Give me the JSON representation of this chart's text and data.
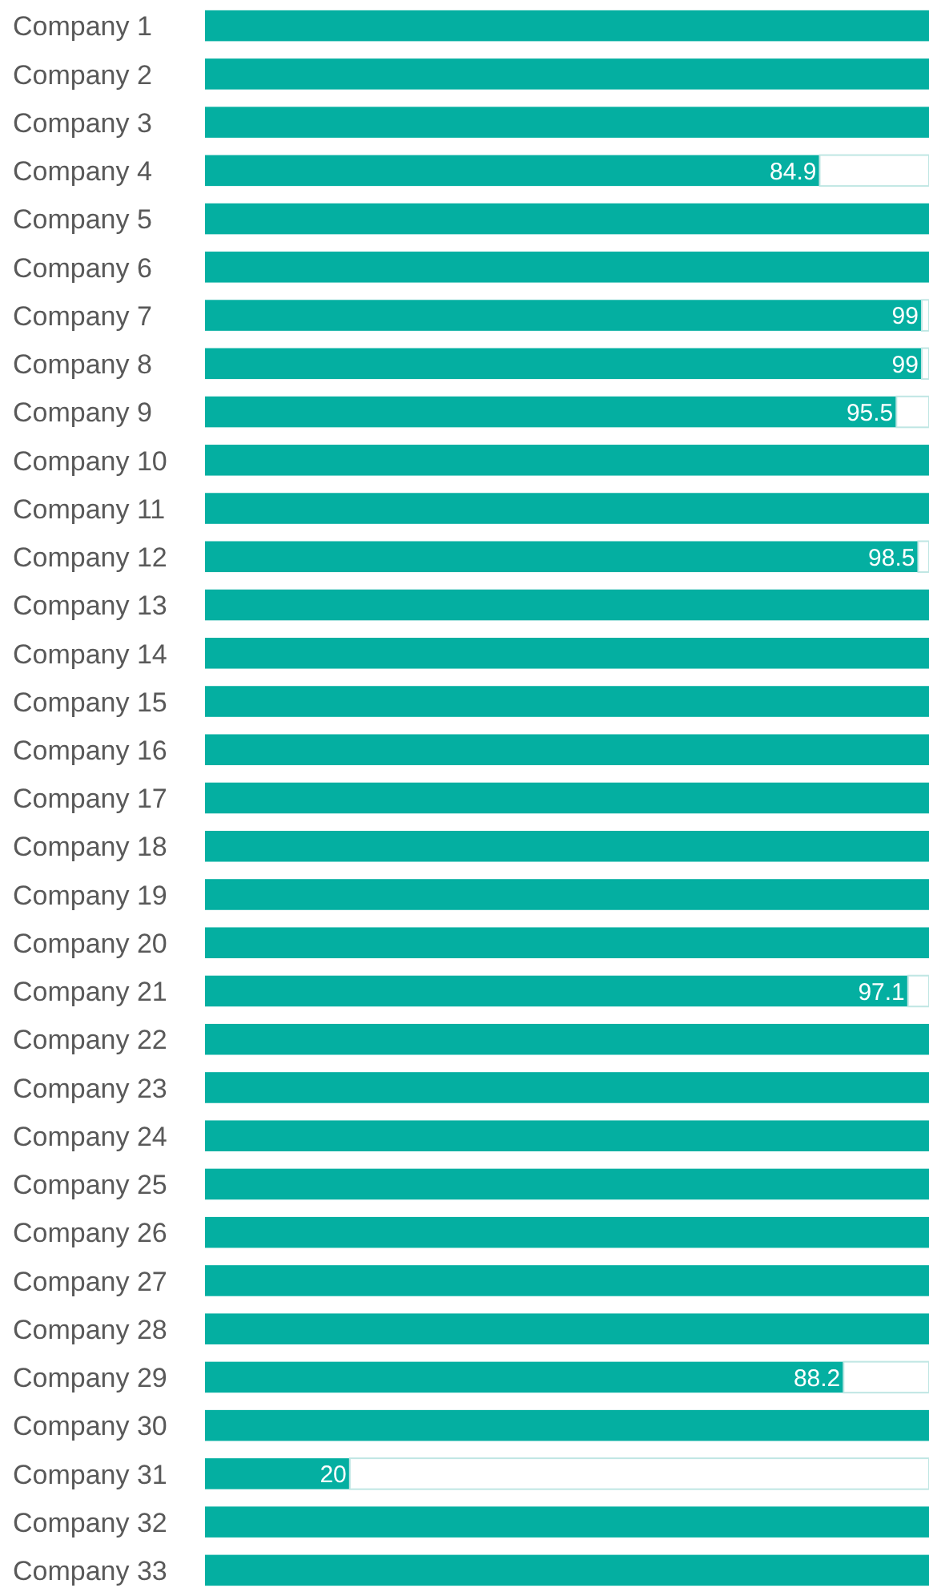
{
  "chart_data": {
    "type": "bar",
    "orientation": "horizontal",
    "stacked": true,
    "categories": [
      "Company 1",
      "Company 2",
      "Company 3",
      "Company 4",
      "Company 5",
      "Company 6",
      "Company 7",
      "Company 8",
      "Company 9",
      "Company 10",
      "Company 11",
      "Company 12",
      "Company 13",
      "Company 14",
      "Company 15",
      "Company 16",
      "Company 17",
      "Company 18",
      "Company 19",
      "Company 20",
      "Company 21",
      "Company 22",
      "Company 23",
      "Company 24",
      "Company 25",
      "Company 26",
      "Company 27",
      "Company 28",
      "Company 29",
      "Company 30",
      "Company 31",
      "Company 32",
      "Company 33"
    ],
    "series": [
      {
        "color": "#04afa1",
        "values": [
          100,
          100,
          100,
          84.9,
          100,
          100,
          99,
          99,
          95.5,
          100,
          100,
          98.5,
          100,
          100,
          100,
          100,
          100,
          100,
          100,
          100,
          97.1,
          100,
          100,
          100,
          100,
          100,
          100,
          100,
          88.2,
          100,
          20,
          100,
          100
        ],
        "value_labels": [
          null,
          null,
          null,
          "84.9",
          null,
          null,
          "99",
          "99",
          "95.5",
          null,
          null,
          "98.5",
          null,
          null,
          null,
          null,
          null,
          null,
          null,
          null,
          "97.1",
          null,
          null,
          null,
          null,
          null,
          null,
          null,
          "88.2",
          null,
          "20",
          null,
          null
        ]
      },
      {
        "color": "#ffffff",
        "values": [
          0,
          0,
          0,
          15.1,
          0,
          0,
          1,
          1,
          4.5,
          0,
          0,
          1.5,
          0,
          0,
          0,
          0,
          0,
          0,
          0,
          0,
          2.9,
          0,
          0,
          0,
          0,
          0,
          0,
          0,
          11.8,
          0,
          80,
          0,
          0
        ]
      }
    ],
    "xlim": [
      0,
      100
    ],
    "tick_labels": "y"
  }
}
